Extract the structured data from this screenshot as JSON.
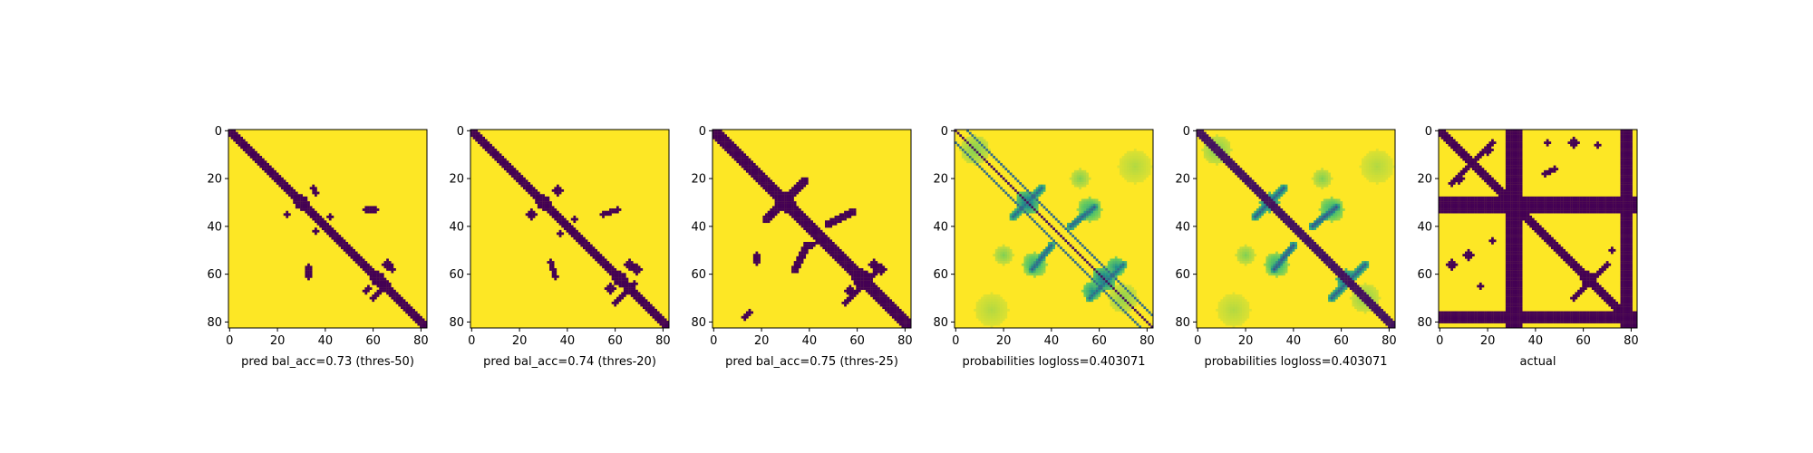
{
  "chart_data": {
    "type": "heatmap",
    "colormap": "viridis",
    "colors": {
      "low": "#440154",
      "mid": "#21918c",
      "high": "#fde725"
    },
    "matrix_size": 83,
    "xlim": [
      0,
      82
    ],
    "ylim": [
      82,
      0
    ],
    "grid": false,
    "xticks": [
      "0",
      "20",
      "40",
      "60",
      "80"
    ],
    "yticks": [
      "0",
      "20",
      "40",
      "60",
      "80"
    ],
    "panels": [
      {
        "xlabel": "pred bal_acc=0.73 (thres-50)",
        "kind": "binary",
        "diagonal_halfwidth": 2,
        "lines": [],
        "blobs": [
          {
            "cx": 30,
            "cy": 30,
            "r": 3
          },
          {
            "cx": 24,
            "cy": 35,
            "r": 1
          },
          {
            "cx": 35,
            "cy": 24,
            "r": 1
          },
          {
            "cx": 36,
            "cy": 26,
            "r": 1
          },
          {
            "cx": 62,
            "cy": 62,
            "r": 3
          },
          {
            "cx": 66,
            "cy": 56,
            "r": 2
          },
          {
            "cx": 58,
            "cy": 66,
            "r": 1
          },
          {
            "cx": 68,
            "cy": 58,
            "r": 1
          },
          {
            "cx": 57,
            "cy": 67,
            "r": 1
          },
          {
            "cx": 36,
            "cy": 42,
            "r": 1
          },
          {
            "cx": 42,
            "cy": 36,
            "r": 1
          }
        ],
        "segments": [
          {
            "x1": 57,
            "y1": 33,
            "x2": 61,
            "y2": 33,
            "w": 1
          },
          {
            "x1": 33,
            "y1": 57,
            "x2": 33,
            "y2": 61,
            "w": 1
          },
          {
            "x1": 60,
            "y1": 70,
            "x2": 66,
            "y2": 64,
            "w": 1
          }
        ]
      },
      {
        "xlabel": "pred bal_acc=0.74 (thres-20)",
        "kind": "binary",
        "diagonal_halfwidth": 2,
        "lines": [],
        "blobs": [
          {
            "cx": 30,
            "cy": 30,
            "r": 3
          },
          {
            "cx": 25,
            "cy": 35,
            "r": 2
          },
          {
            "cx": 36,
            "cy": 25,
            "r": 2
          },
          {
            "cx": 62,
            "cy": 62,
            "r": 3
          },
          {
            "cx": 66,
            "cy": 56,
            "r": 2
          },
          {
            "cx": 58,
            "cy": 66,
            "r": 2
          },
          {
            "cx": 69,
            "cy": 58,
            "r": 2
          },
          {
            "cx": 37,
            "cy": 43,
            "r": 1
          },
          {
            "cx": 43,
            "cy": 37,
            "r": 1
          }
        ],
        "segments": [
          {
            "x1": 55,
            "y1": 35,
            "x2": 61,
            "y2": 33,
            "w": 1
          },
          {
            "x1": 33,
            "y1": 55,
            "x2": 35,
            "y2": 61,
            "w": 1
          },
          {
            "x1": 60,
            "y1": 72,
            "x2": 68,
            "y2": 64,
            "w": 1
          }
        ]
      },
      {
        "xlabel": "pred bal_acc=0.75 (thres-25)",
        "kind": "binary",
        "diagonal_halfwidth": 3,
        "lines": [],
        "blobs": [
          {
            "cx": 30,
            "cy": 30,
            "r": 4
          },
          {
            "cx": 62,
            "cy": 62,
            "r": 4
          },
          {
            "cx": 67,
            "cy": 56,
            "r": 2
          },
          {
            "cx": 57,
            "cy": 67,
            "r": 2
          },
          {
            "cx": 70,
            "cy": 58,
            "r": 2
          },
          {
            "cx": 4,
            "cy": 2,
            "r": 1
          }
        ],
        "segments": [
          {
            "x1": 22,
            "y1": 37,
            "x2": 38,
            "y2": 21,
            "w": 1.5
          },
          {
            "x1": 48,
            "y1": 39,
            "x2": 58,
            "y2": 34,
            "w": 1.5
          },
          {
            "x1": 34,
            "y1": 58,
            "x2": 39,
            "y2": 48,
            "w": 1.5
          },
          {
            "x1": 55,
            "y1": 72,
            "x2": 70,
            "y2": 57,
            "w": 1
          },
          {
            "x1": 13,
            "y1": 78,
            "x2": 15,
            "y2": 76,
            "w": 1
          },
          {
            "x1": 18,
            "y1": 52,
            "x2": 18,
            "y2": 55,
            "w": 1
          },
          {
            "x1": 38,
            "y1": 50,
            "x2": 44,
            "y2": 46,
            "w": 1
          }
        ]
      },
      {
        "xlabel": "probabilities logloss=0.403071",
        "kind": "probability",
        "diagonal_halfwidth": 0,
        "lines": [
          {
            "offset": -5
          },
          {
            "offset": 5
          }
        ],
        "blobs": [
          {
            "cx": 30,
            "cy": 30,
            "r": 5,
            "v": 0.35
          },
          {
            "cx": 62,
            "cy": 62,
            "r": 5,
            "v": 0.35
          },
          {
            "cx": 56,
            "cy": 33,
            "r": 5,
            "v": 0.6
          },
          {
            "cx": 33,
            "cy": 56,
            "r": 5,
            "v": 0.6
          },
          {
            "cx": 20,
            "cy": 52,
            "r": 4,
            "v": 0.8
          },
          {
            "cx": 52,
            "cy": 20,
            "r": 4,
            "v": 0.8
          },
          {
            "cx": 15,
            "cy": 75,
            "r": 7,
            "v": 0.88
          },
          {
            "cx": 75,
            "cy": 15,
            "r": 7,
            "v": 0.88
          },
          {
            "cx": 8,
            "cy": 8,
            "r": 6,
            "v": 0.8
          },
          {
            "cx": 57,
            "cy": 67,
            "r": 4,
            "v": 0.5
          },
          {
            "cx": 67,
            "cy": 57,
            "r": 4,
            "v": 0.5
          },
          {
            "cx": 70,
            "cy": 70,
            "r": 6,
            "v": 0.82
          }
        ],
        "segments": [
          {
            "x1": 48,
            "y1": 40,
            "x2": 58,
            "y2": 32,
            "w": 1.5,
            "v": 0.3
          },
          {
            "x1": 32,
            "y1": 58,
            "x2": 40,
            "y2": 48,
            "w": 1.5,
            "v": 0.3
          },
          {
            "x1": 24,
            "y1": 36,
            "x2": 36,
            "y2": 24,
            "w": 1.5,
            "v": 0.35
          },
          {
            "x1": 56,
            "y1": 70,
            "x2": 70,
            "y2": 56,
            "w": 1.5,
            "v": 0.35
          }
        ]
      },
      {
        "xlabel": "probabilities logloss=0.403071",
        "kind": "probability",
        "diagonal_halfwidth": 2,
        "lines": [],
        "blobs": [
          {
            "cx": 30,
            "cy": 30,
            "r": 4,
            "v": 0.2
          },
          {
            "cx": 62,
            "cy": 62,
            "r": 4,
            "v": 0.2
          },
          {
            "cx": 56,
            "cy": 33,
            "r": 5,
            "v": 0.6
          },
          {
            "cx": 33,
            "cy": 56,
            "r": 5,
            "v": 0.6
          },
          {
            "cx": 20,
            "cy": 52,
            "r": 4,
            "v": 0.8
          },
          {
            "cx": 52,
            "cy": 20,
            "r": 4,
            "v": 0.8
          },
          {
            "cx": 15,
            "cy": 75,
            "r": 7,
            "v": 0.88
          },
          {
            "cx": 75,
            "cy": 15,
            "r": 7,
            "v": 0.88
          },
          {
            "cx": 8,
            "cy": 8,
            "r": 6,
            "v": 0.8
          },
          {
            "cx": 70,
            "cy": 70,
            "r": 6,
            "v": 0.82
          }
        ],
        "segments": [
          {
            "x1": 48,
            "y1": 40,
            "x2": 58,
            "y2": 32,
            "w": 1.5,
            "v": 0.25
          },
          {
            "x1": 32,
            "y1": 58,
            "x2": 40,
            "y2": 48,
            "w": 1.5,
            "v": 0.25
          },
          {
            "x1": 24,
            "y1": 36,
            "x2": 36,
            "y2": 24,
            "w": 1.5,
            "v": 0.3
          },
          {
            "x1": 56,
            "y1": 70,
            "x2": 70,
            "y2": 56,
            "w": 1.5,
            "v": 0.3
          }
        ]
      },
      {
        "xlabel": "actual",
        "kind": "binary",
        "diagonal_halfwidth": 2,
        "lines": [],
        "bands": [
          {
            "orient": "col",
            "from": 28,
            "to": 34
          },
          {
            "orient": "col",
            "from": 76,
            "to": 80
          },
          {
            "orient": "row",
            "from": 28,
            "to": 34
          },
          {
            "orient": "row",
            "from": 76,
            "to": 80
          }
        ],
        "blobs": [
          {
            "cx": 12,
            "cy": 12,
            "r": 2
          },
          {
            "cx": 20,
            "cy": 8,
            "r": 2
          },
          {
            "cx": 8,
            "cy": 20,
            "r": 2
          },
          {
            "cx": 62,
            "cy": 62,
            "r": 3
          },
          {
            "cx": 45,
            "cy": 5,
            "r": 1
          },
          {
            "cx": 56,
            "cy": 5,
            "r": 2
          },
          {
            "cx": 66,
            "cy": 6,
            "r": 1
          },
          {
            "cx": 22,
            "cy": 46,
            "r": 1
          },
          {
            "cx": 5,
            "cy": 56,
            "r": 2
          },
          {
            "cx": 17,
            "cy": 65,
            "r": 1
          },
          {
            "cx": 12,
            "cy": 52,
            "r": 2
          },
          {
            "cx": 72,
            "cy": 50,
            "r": 1
          }
        ],
        "segments": [
          {
            "x1": 5,
            "y1": 22,
            "x2": 22,
            "y2": 5,
            "w": 1
          },
          {
            "x1": 44,
            "y1": 18,
            "x2": 48,
            "y2": 16,
            "w": 1
          },
          {
            "x1": 56,
            "y1": 70,
            "x2": 70,
            "y2": 56,
            "w": 1
          }
        ]
      }
    ]
  }
}
